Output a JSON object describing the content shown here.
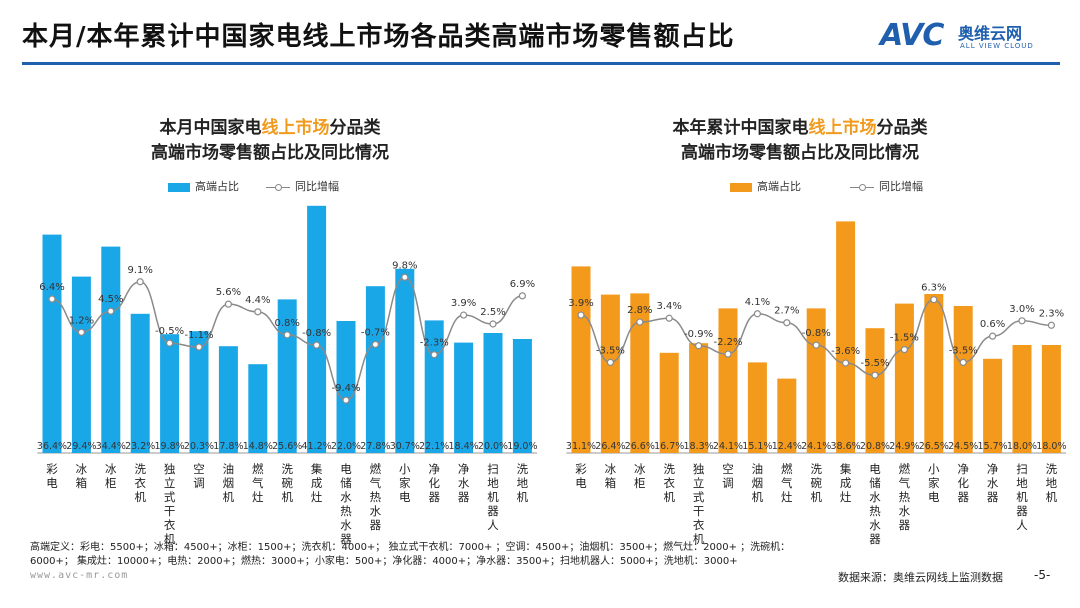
{
  "page": {
    "title": "本月/本年累计中国家电线上市场各品类高端市场零售额占比",
    "logo": {
      "avc": "AVC",
      "cn": "奥维云网",
      "en": "ALL VIEW CLOUD"
    },
    "footnote_line1": "高端定义：彩电：5500+；冰箱：4500+；冰柜：1500+；洗衣机：4000+；  独立式干衣机：7000+ ；空调：4500+；油烟机：3500+；燃气灶：2000+ ；洗碗机：",
    "footnote_line2": "6000+；  集成灶：10000+；电热：2000+；燃热：3000+；小家电：500+；净化器：4000+；净水器：3500+；扫地机器人：5000+；洗地机：3000+",
    "url": "www.avc-mr.com",
    "source": "数据来源：奥维云网线上监测数据",
    "page_number": "-5-"
  },
  "colors": {
    "left_bar": "#1aa7e8",
    "right_bar": "#f39a1c",
    "line": "#8a8a8a",
    "title_rule": "#1f5fae",
    "highlight": "#f19a1d"
  },
  "chart_data": [
    {
      "type": "bar",
      "title_line1_pre": "本月中国家电",
      "title_line1_hl": "线上市场",
      "title_line1_post": "分品类",
      "title_line2": "高端市场零售额占比及同比情况",
      "legend_bar": "高端占比",
      "legend_line": "同比增幅",
      "categories": [
        "彩电",
        "冰箱",
        "冰柜",
        "洗衣机",
        "独立式干衣机",
        "空调",
        "油烟机",
        "燃气灶",
        "洗碗机",
        "集成灶",
        "电储水热水器",
        "燃气热水器",
        "小家电",
        "净化器",
        "净水器",
        "扫地机器人",
        "洗地机"
      ],
      "series": [
        {
          "kind": "bar",
          "values": [
            36.4,
            29.4,
            34.4,
            23.2,
            19.8,
            20.3,
            17.8,
            14.8,
            25.6,
            41.2,
            22.0,
            27.8,
            30.7,
            22.1,
            18.4,
            20.0,
            19.0
          ],
          "labels": [
            "36.4%",
            "29.4%",
            "34.4%",
            "23.2%",
            "19.8%",
            "20.3%",
            "17.8%",
            "14.8%",
            "25.6%",
            "41.2%",
            "22.0%",
            "27.8%",
            "30.7%",
            "22.1%",
            "18.4%",
            "20.0%",
            "19.0%"
          ]
        },
        {
          "kind": "line",
          "values": [
            6.4,
            1.2,
            4.5,
            9.1,
            -0.5,
            -1.1,
            5.6,
            4.4,
            0.8,
            -0.8,
            -9.4,
            -0.7,
            9.8,
            -2.3,
            3.9,
            2.5,
            6.9
          ],
          "labels": [
            "6.4%",
            "1.2%",
            "4.5%",
            "9.1%",
            "-0.5%",
            "-1.1%",
            "5.6%",
            "4.4%",
            "0.8%",
            "-0.8%",
            "-9.4%",
            "-0.7%",
            "9.8%",
            "-2.3%",
            "3.9%",
            "2.5%",
            "6.9%"
          ]
        }
      ]
    },
    {
      "type": "bar",
      "title_line1_pre": "本年累计中国家电",
      "title_line1_hl": "线上市场",
      "title_line1_post": "分品类",
      "title_line2": "高端市场零售额占比及同比情况",
      "legend_bar": "高端占比",
      "legend_line": "同比增幅",
      "categories": [
        "彩电",
        "冰箱",
        "冰柜",
        "洗衣机",
        "独立式干衣机",
        "空调",
        "油烟机",
        "燃气灶",
        "洗碗机",
        "集成灶",
        "电储水热水器",
        "燃气热水器",
        "小家电",
        "净化器",
        "净水器",
        "扫地机器人",
        "洗地机"
      ],
      "series": [
        {
          "kind": "bar",
          "values": [
            31.1,
            26.4,
            26.6,
            16.7,
            18.3,
            24.1,
            15.1,
            12.4,
            24.1,
            38.6,
            20.8,
            24.9,
            26.5,
            24.5,
            15.7,
            18.0,
            18.0
          ],
          "labels": [
            "31.1%",
            "26.4%",
            "26.6%",
            "16.7%",
            "18.3%",
            "24.1%",
            "15.1%",
            "12.4%",
            "24.1%",
            "38.6%",
            "20.8%",
            "24.9%",
            "26.5%",
            "24.5%",
            "15.7%",
            "18.0%",
            "18.0%"
          ]
        },
        {
          "kind": "line",
          "values": [
            3.9,
            -3.5,
            2.8,
            3.4,
            -0.9,
            -2.2,
            4.1,
            2.7,
            -0.8,
            -3.6,
            -5.5,
            -1.5,
            6.3,
            -3.5,
            0.6,
            3.0,
            2.3
          ],
          "labels": [
            "3.9%",
            "-3.5%",
            "2.8%",
            "3.4%",
            "-0.9%",
            "-2.2%",
            "4.1%",
            "2.7%",
            "-0.8%",
            "-3.6%",
            "-5.5%",
            "-1.5%",
            "6.3%",
            "-3.5%",
            "0.6%",
            "3.0%",
            "2.3%"
          ]
        }
      ]
    }
  ]
}
